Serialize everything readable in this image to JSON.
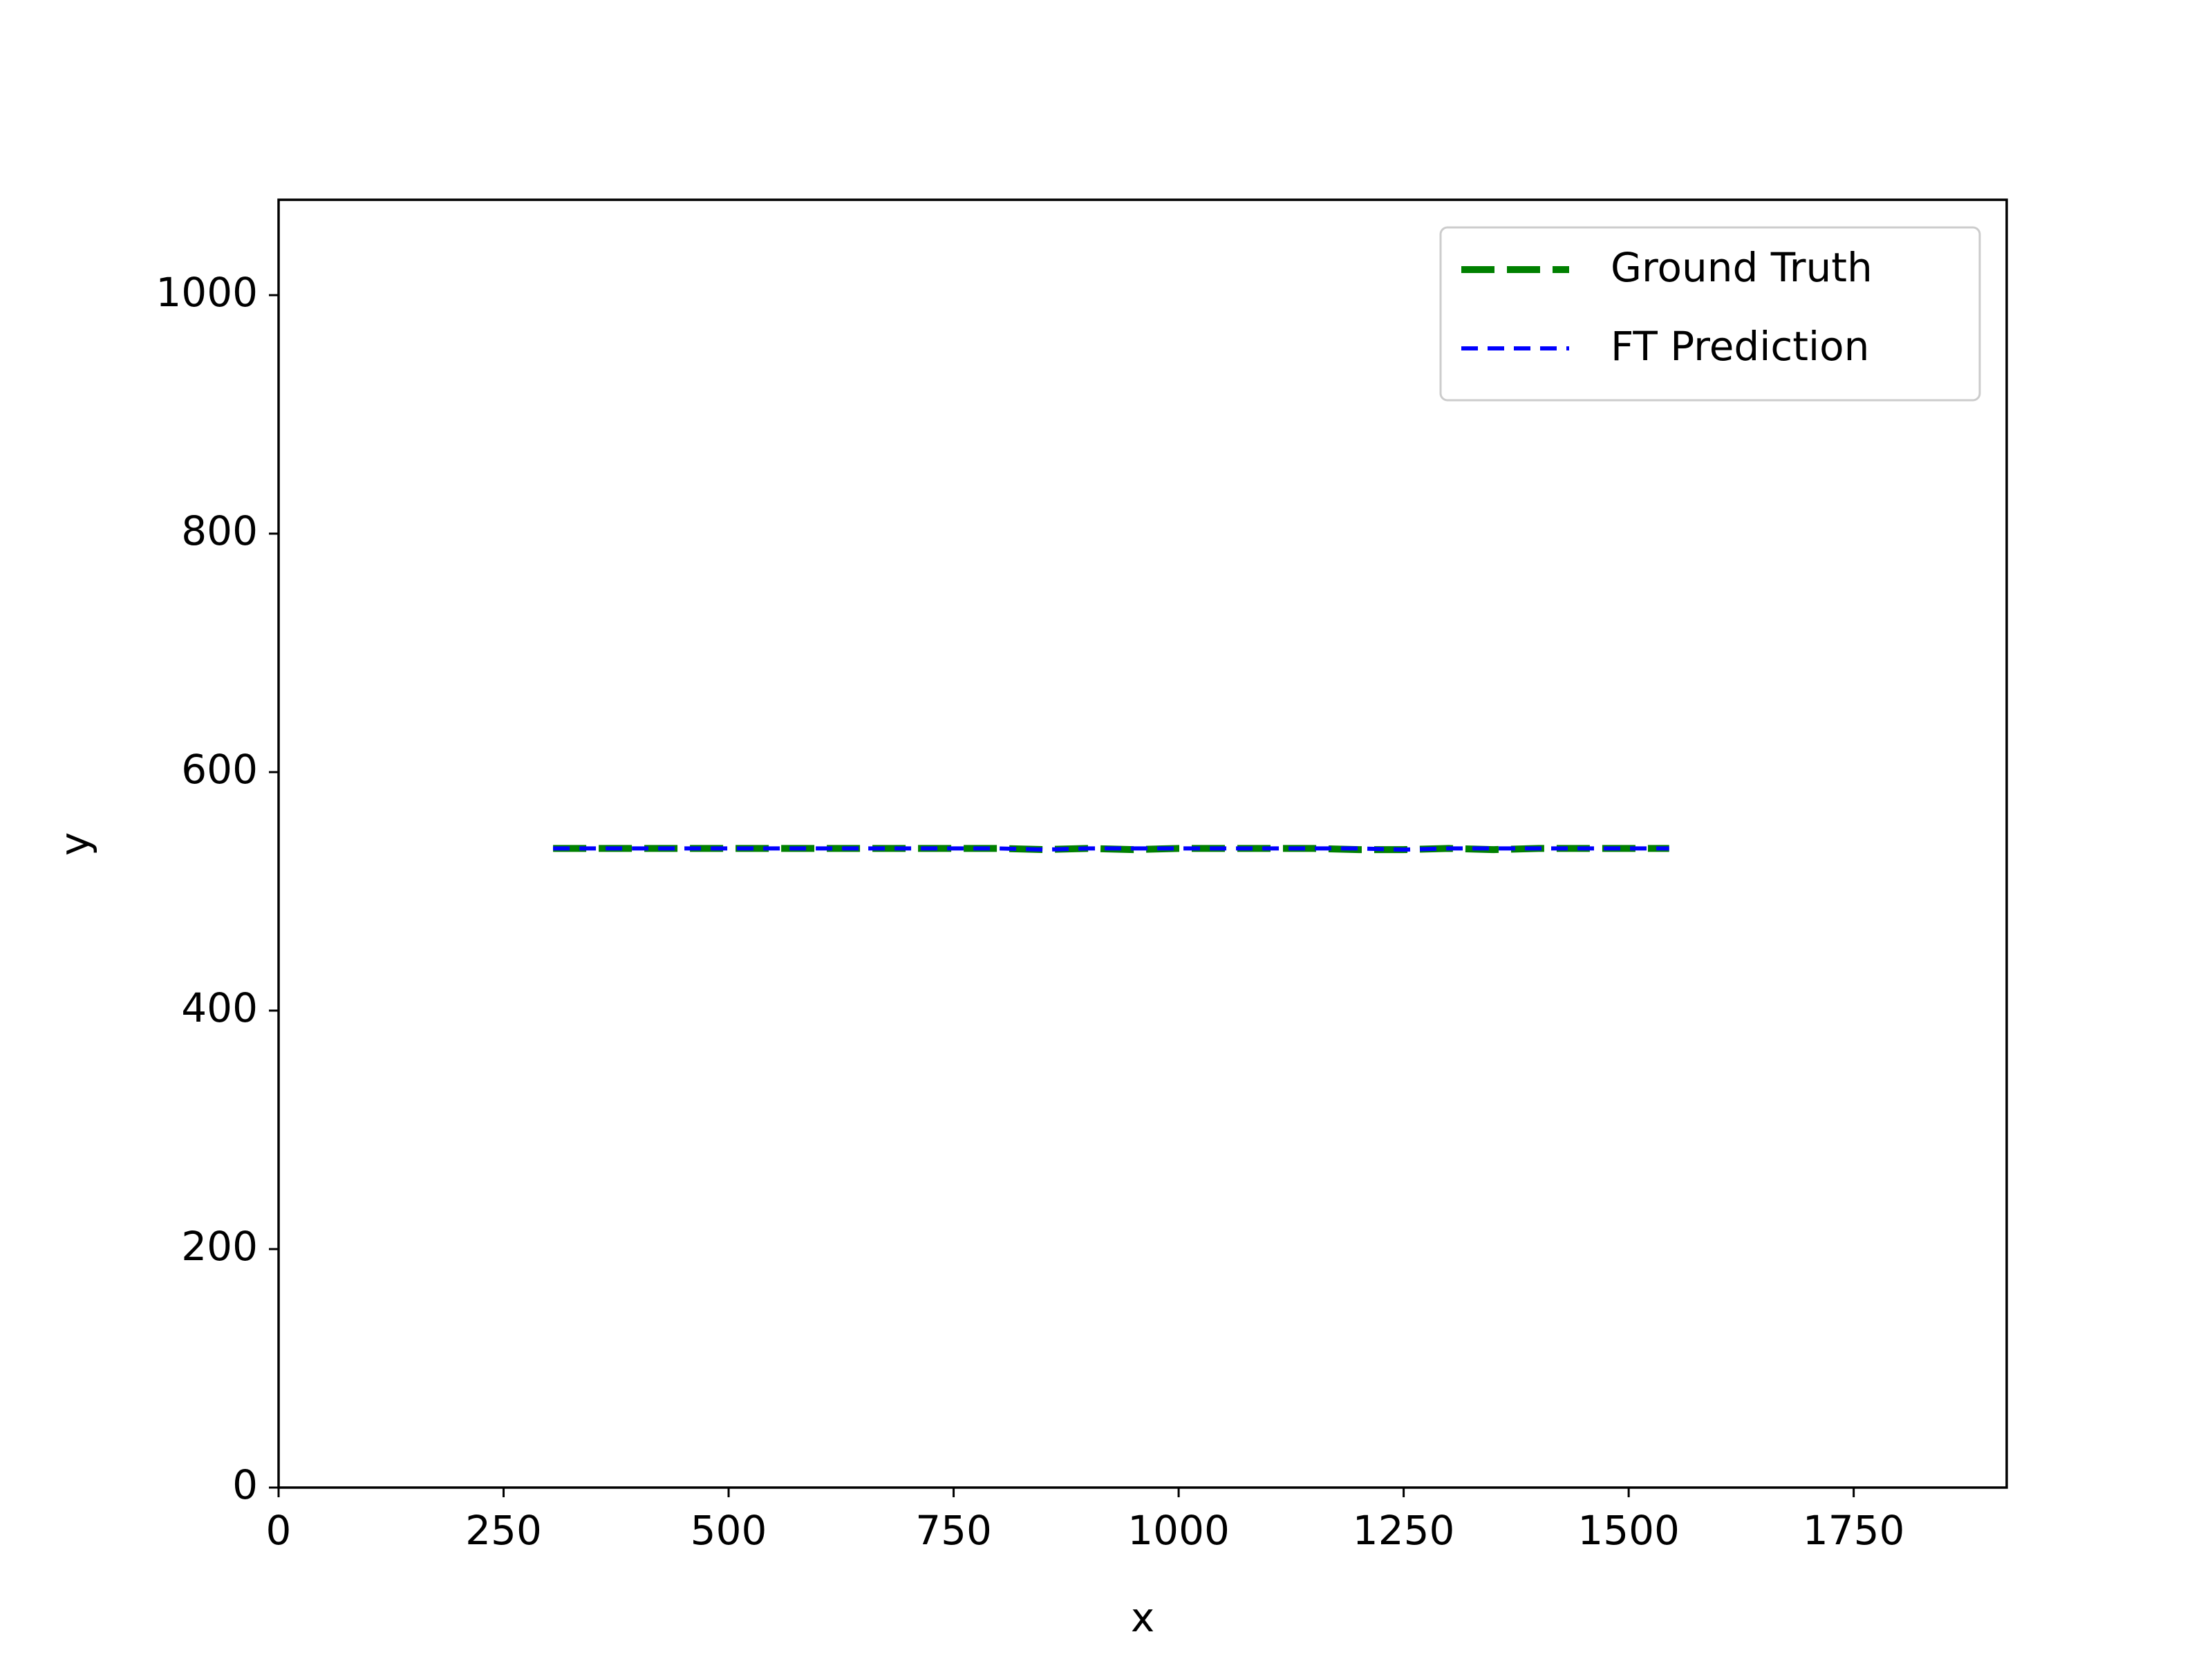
{
  "chart_data": {
    "type": "line",
    "title": "",
    "xlabel": "x",
    "ylabel": "y",
    "xlim": [
      0,
      1920
    ],
    "ylim": [
      0,
      1080
    ],
    "xticks": [
      0,
      250,
      500,
      750,
      1000,
      1250,
      1500,
      1750
    ],
    "yticks": [
      0,
      200,
      400,
      600,
      800,
      1000
    ],
    "grid": false,
    "legend_position": "top-right",
    "series": [
      {
        "name": "Ground Truth",
        "color": "#008000",
        "style": "dashed",
        "x": [
          305,
          350,
          400,
          450,
          500,
          550,
          600,
          650,
          700,
          750,
          800,
          850,
          900,
          950,
          1000,
          1050,
          1100,
          1150,
          1200,
          1250,
          1300,
          1350,
          1400,
          1450,
          1500,
          1545
        ],
        "y": [
          536,
          536,
          536,
          536,
          536,
          536,
          536,
          536,
          536,
          536,
          536,
          535,
          536,
          535,
          536,
          536,
          536,
          536,
          535,
          535,
          536,
          535,
          536,
          536,
          536,
          536
        ]
      },
      {
        "name": "FT Prediction",
        "color": "#0000ff",
        "style": "dashed",
        "x": [
          305,
          350,
          400,
          450,
          500,
          550,
          600,
          650,
          700,
          750,
          800,
          850,
          900,
          950,
          1000,
          1050,
          1100,
          1150,
          1200,
          1250,
          1300,
          1350,
          1400,
          1450,
          1500,
          1545
        ],
        "y": [
          536,
          536,
          536,
          536,
          536,
          536,
          536,
          536,
          536,
          536,
          536,
          535,
          536,
          536,
          536,
          536,
          536,
          536,
          536,
          535,
          536,
          536,
          536,
          536,
          536,
          536
        ]
      }
    ]
  }
}
